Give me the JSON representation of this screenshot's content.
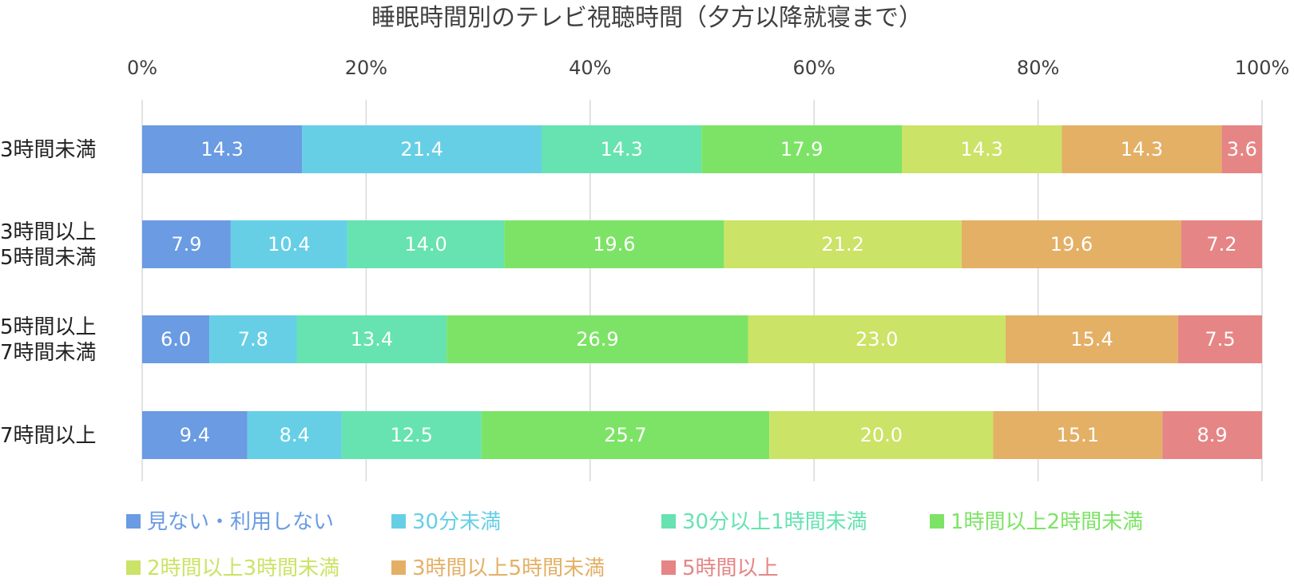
{
  "chart_data": {
    "type": "bar",
    "orientation": "horizontal",
    "stacked": true,
    "percent": true,
    "title": "睡眠時間別のテレビ視聴時間（夕方以降就寝まで）",
    "categories": [
      [
        "3時間未満"
      ],
      [
        "3時間以上",
        "5時間未満"
      ],
      [
        "5時間以上",
        "7時間未満"
      ],
      [
        "7時間以上"
      ]
    ],
    "x_ticks": [
      "0%",
      "20%",
      "40%",
      "60%",
      "80%",
      "100%"
    ],
    "xlim": [
      0,
      100
    ],
    "grid": true,
    "axis_position": "top",
    "legend_position": "bottom",
    "series": [
      {
        "name": "見ない・利用しない",
        "color": "#6a9be3",
        "values": [
          14.3,
          7.9,
          6.0,
          9.4
        ]
      },
      {
        "name": "30分未満",
        "color": "#66cfe6",
        "values": [
          21.4,
          10.4,
          7.8,
          8.4
        ]
      },
      {
        "name": "30分以上1時間未満",
        "color": "#66e3b0",
        "values": [
          14.3,
          14.0,
          13.4,
          12.5
        ]
      },
      {
        "name": "1時間以上2時間未満",
        "color": "#7de366",
        "values": [
          17.9,
          19.6,
          26.9,
          25.7
        ]
      },
      {
        "name": "2時間以上3時間未満",
        "color": "#cbe366",
        "values": [
          14.3,
          21.2,
          23.0,
          20.0
        ]
      },
      {
        "name": "3時間以上5時間未満",
        "color": "#e3b066",
        "values": [
          14.3,
          19.6,
          15.4,
          15.1
        ]
      },
      {
        "name": "5時間以上",
        "color": "#e68585",
        "values": [
          3.6,
          7.2,
          7.5,
          8.9
        ]
      }
    ]
  }
}
